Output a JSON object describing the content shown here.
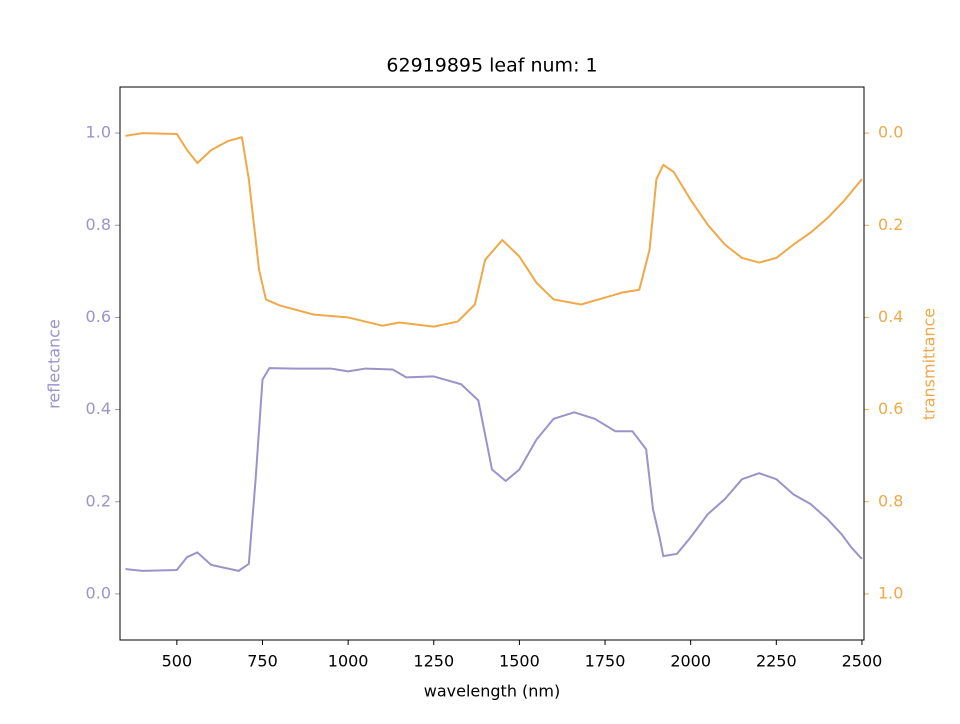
{
  "chart_data": {
    "type": "line",
    "title": "62919895 leaf num: 1",
    "xlabel": "wavelength (nm)",
    "ylabel": "reflectance",
    "y2label": "transmittance",
    "xlim": [
      334,
      2506
    ],
    "xticks": [
      500,
      750,
      1000,
      1250,
      1500,
      1750,
      2000,
      2250,
      2500
    ],
    "ylim": [
      -0.1,
      1.1
    ],
    "yticks": [
      {
        "value": 0,
        "label": "0.0"
      },
      0.2,
      0.4,
      0.6,
      0.8,
      {
        "value": 1,
        "label": "1.0"
      }
    ],
    "y2lim": [
      1.1,
      -0.1
    ],
    "y2ticks": [
      {
        "value": 0,
        "label": "0.0"
      },
      0.2,
      0.4,
      0.6,
      0.8,
      {
        "value": 1,
        "label": "1.0"
      }
    ],
    "ycolor": "#9b93c9",
    "y2color": "#f0a848",
    "series": [
      {
        "color": "#9b93c9",
        "x": [
          350,
          400,
          500,
          530,
          560,
          600,
          680,
          710,
          730,
          750,
          770,
          850,
          950,
          1000,
          1050,
          1130,
          1170,
          1250,
          1330,
          1380,
          1420,
          1460,
          1500,
          1550,
          1600,
          1660,
          1720,
          1780,
          1830,
          1870,
          1890,
          1910,
          1920,
          1960,
          2000,
          2050,
          2100,
          2150,
          2200,
          2250,
          2300,
          2350,
          2400,
          2440,
          2470,
          2500
        ],
        "values": [
          0.054,
          0.05,
          0.052,
          0.08,
          0.09,
          0.063,
          0.05,
          0.065,
          0.25,
          0.465,
          0.49,
          0.489,
          0.489,
          0.483,
          0.489,
          0.487,
          0.47,
          0.472,
          0.455,
          0.42,
          0.27,
          0.245,
          0.27,
          0.335,
          0.38,
          0.394,
          0.38,
          0.353,
          0.353,
          0.314,
          0.184,
          0.12,
          0.082,
          0.087,
          0.123,
          0.173,
          0.206,
          0.249,
          0.262,
          0.249,
          0.216,
          0.195,
          0.162,
          0.13,
          0.1,
          0.076
        ]
      },
      {
        "color": "#f0a848",
        "axis": "y2",
        "x": [
          350,
          400,
          500,
          530,
          560,
          600,
          650,
          690,
          710,
          740,
          760,
          800,
          900,
          1000,
          1100,
          1150,
          1250,
          1320,
          1370,
          1400,
          1450,
          1500,
          1550,
          1600,
          1680,
          1750,
          1800,
          1850,
          1880,
          1900,
          1920,
          1950,
          2000,
          2050,
          2100,
          2150,
          2200,
          2250,
          2300,
          2350,
          2400,
          2450,
          2500
        ],
        "values": [
          0.006,
          0,
          0.002,
          0.037,
          0.065,
          0.037,
          0.017,
          0.009,
          0.1,
          0.297,
          0.361,
          0.374,
          0.394,
          0.4,
          0.418,
          0.411,
          0.42,
          0.409,
          0.372,
          0.275,
          0.232,
          0.268,
          0.325,
          0.361,
          0.372,
          0.357,
          0.346,
          0.34,
          0.253,
          0.1,
          0.069,
          0.084,
          0.145,
          0.199,
          0.242,
          0.271,
          0.281,
          0.271,
          0.242,
          0.216,
          0.184,
          0.145,
          0.1
        ]
      }
    ]
  }
}
